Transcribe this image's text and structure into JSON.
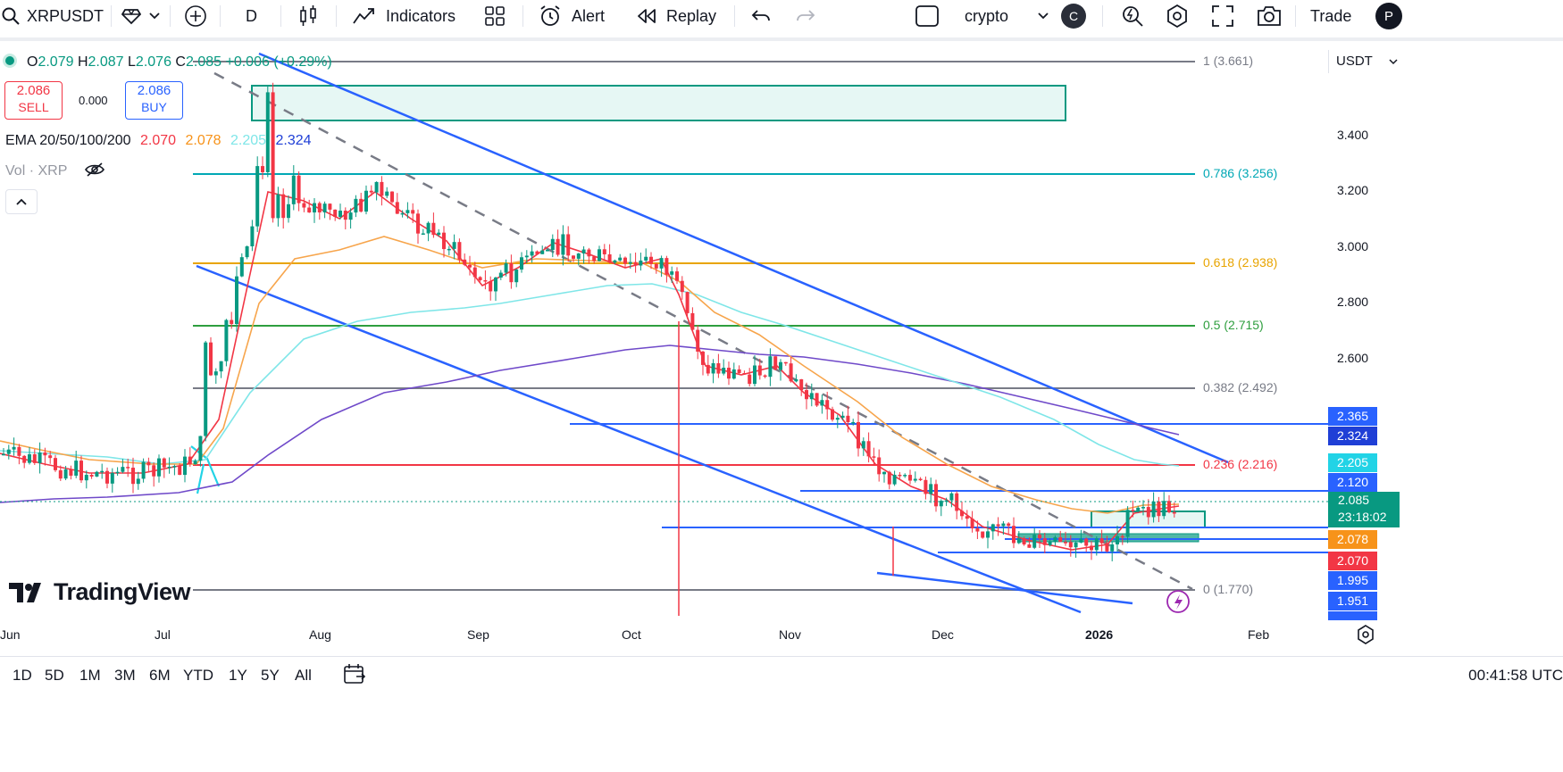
{
  "toolbar": {
    "symbol": "XRPUSDT",
    "interval": "D",
    "indicators_label": "Indicators",
    "alert_label": "Alert",
    "replay_label": "Replay",
    "watchlist_label": "crypto",
    "avatar_letter": "C",
    "trade_label": "Trade",
    "profile_letter": "P"
  },
  "legend": {
    "open_label": "O",
    "open": "2.079",
    "high_label": "H",
    "high": "2.087",
    "low_label": "L",
    "low": "2.076",
    "close_label": "C",
    "close": "2.085",
    "change": "+0.006 (+0.29%)",
    "sell_price": "2.086",
    "sell_label": "SELL",
    "spread": "0.000",
    "buy_price": "2.086",
    "buy_label": "BUY",
    "ema_title": "EMA 20/50/100/200",
    "ema20": "2.070",
    "ema50": "2.078",
    "ema100": "2.205",
    "ema200": "2.324",
    "vol_label": "Vol · XRP"
  },
  "colors": {
    "up": "#089981",
    "down": "#f23645",
    "ema20": "#f23645",
    "ema50": "#f7a54c",
    "ema100": "#7fe6e8",
    "ema200": "#6f49c9",
    "trendline": "#2962ff"
  },
  "price_scale": {
    "currency": "USDT",
    "ticks": [
      "3.400",
      "3.200",
      "3.000",
      "2.800",
      "2.600"
    ],
    "tags": [
      {
        "value": "2.365",
        "color": "#2962ff"
      },
      {
        "value": "2.324",
        "color": "#1f3fd6"
      },
      {
        "value": "2.205",
        "color": "#22d3e6"
      },
      {
        "value": "2.120",
        "color": "#2962ff"
      },
      {
        "value": "2.078",
        "color": "#f7931a"
      },
      {
        "value": "2.070",
        "color": "#f23645"
      },
      {
        "value": "1.995",
        "color": "#2962ff"
      },
      {
        "value": "1.951",
        "color": "#2962ff"
      }
    ],
    "last_price": "2.085",
    "countdown": "23:18:02"
  },
  "fibonacci": [
    {
      "label": "1 (3.661)",
      "color": "#787b86"
    },
    {
      "label": "0.786 (3.256)",
      "color": "#00a8b5"
    },
    {
      "label": "0.618 (2.938)",
      "color": "#e8a400"
    },
    {
      "label": "0.5 (2.715)",
      "color": "#2e9e3e"
    },
    {
      "label": "0.382 (2.492)",
      "color": "#787b86"
    },
    {
      "label": "0.236 (2.216)",
      "color": "#f23645"
    },
    {
      "label": "0 (1.770)",
      "color": "#787b86"
    }
  ],
  "time_axis": [
    "Jun",
    "Jul",
    "Aug",
    "Sep",
    "Oct",
    "Nov",
    "Dec",
    "2026",
    "Feb"
  ],
  "ranges": [
    "1D",
    "5D",
    "1M",
    "3M",
    "6M",
    "YTD",
    "1Y",
    "5Y",
    "All"
  ],
  "clock": "00:41:58 UTC",
  "logo_text": "TradingView"
}
